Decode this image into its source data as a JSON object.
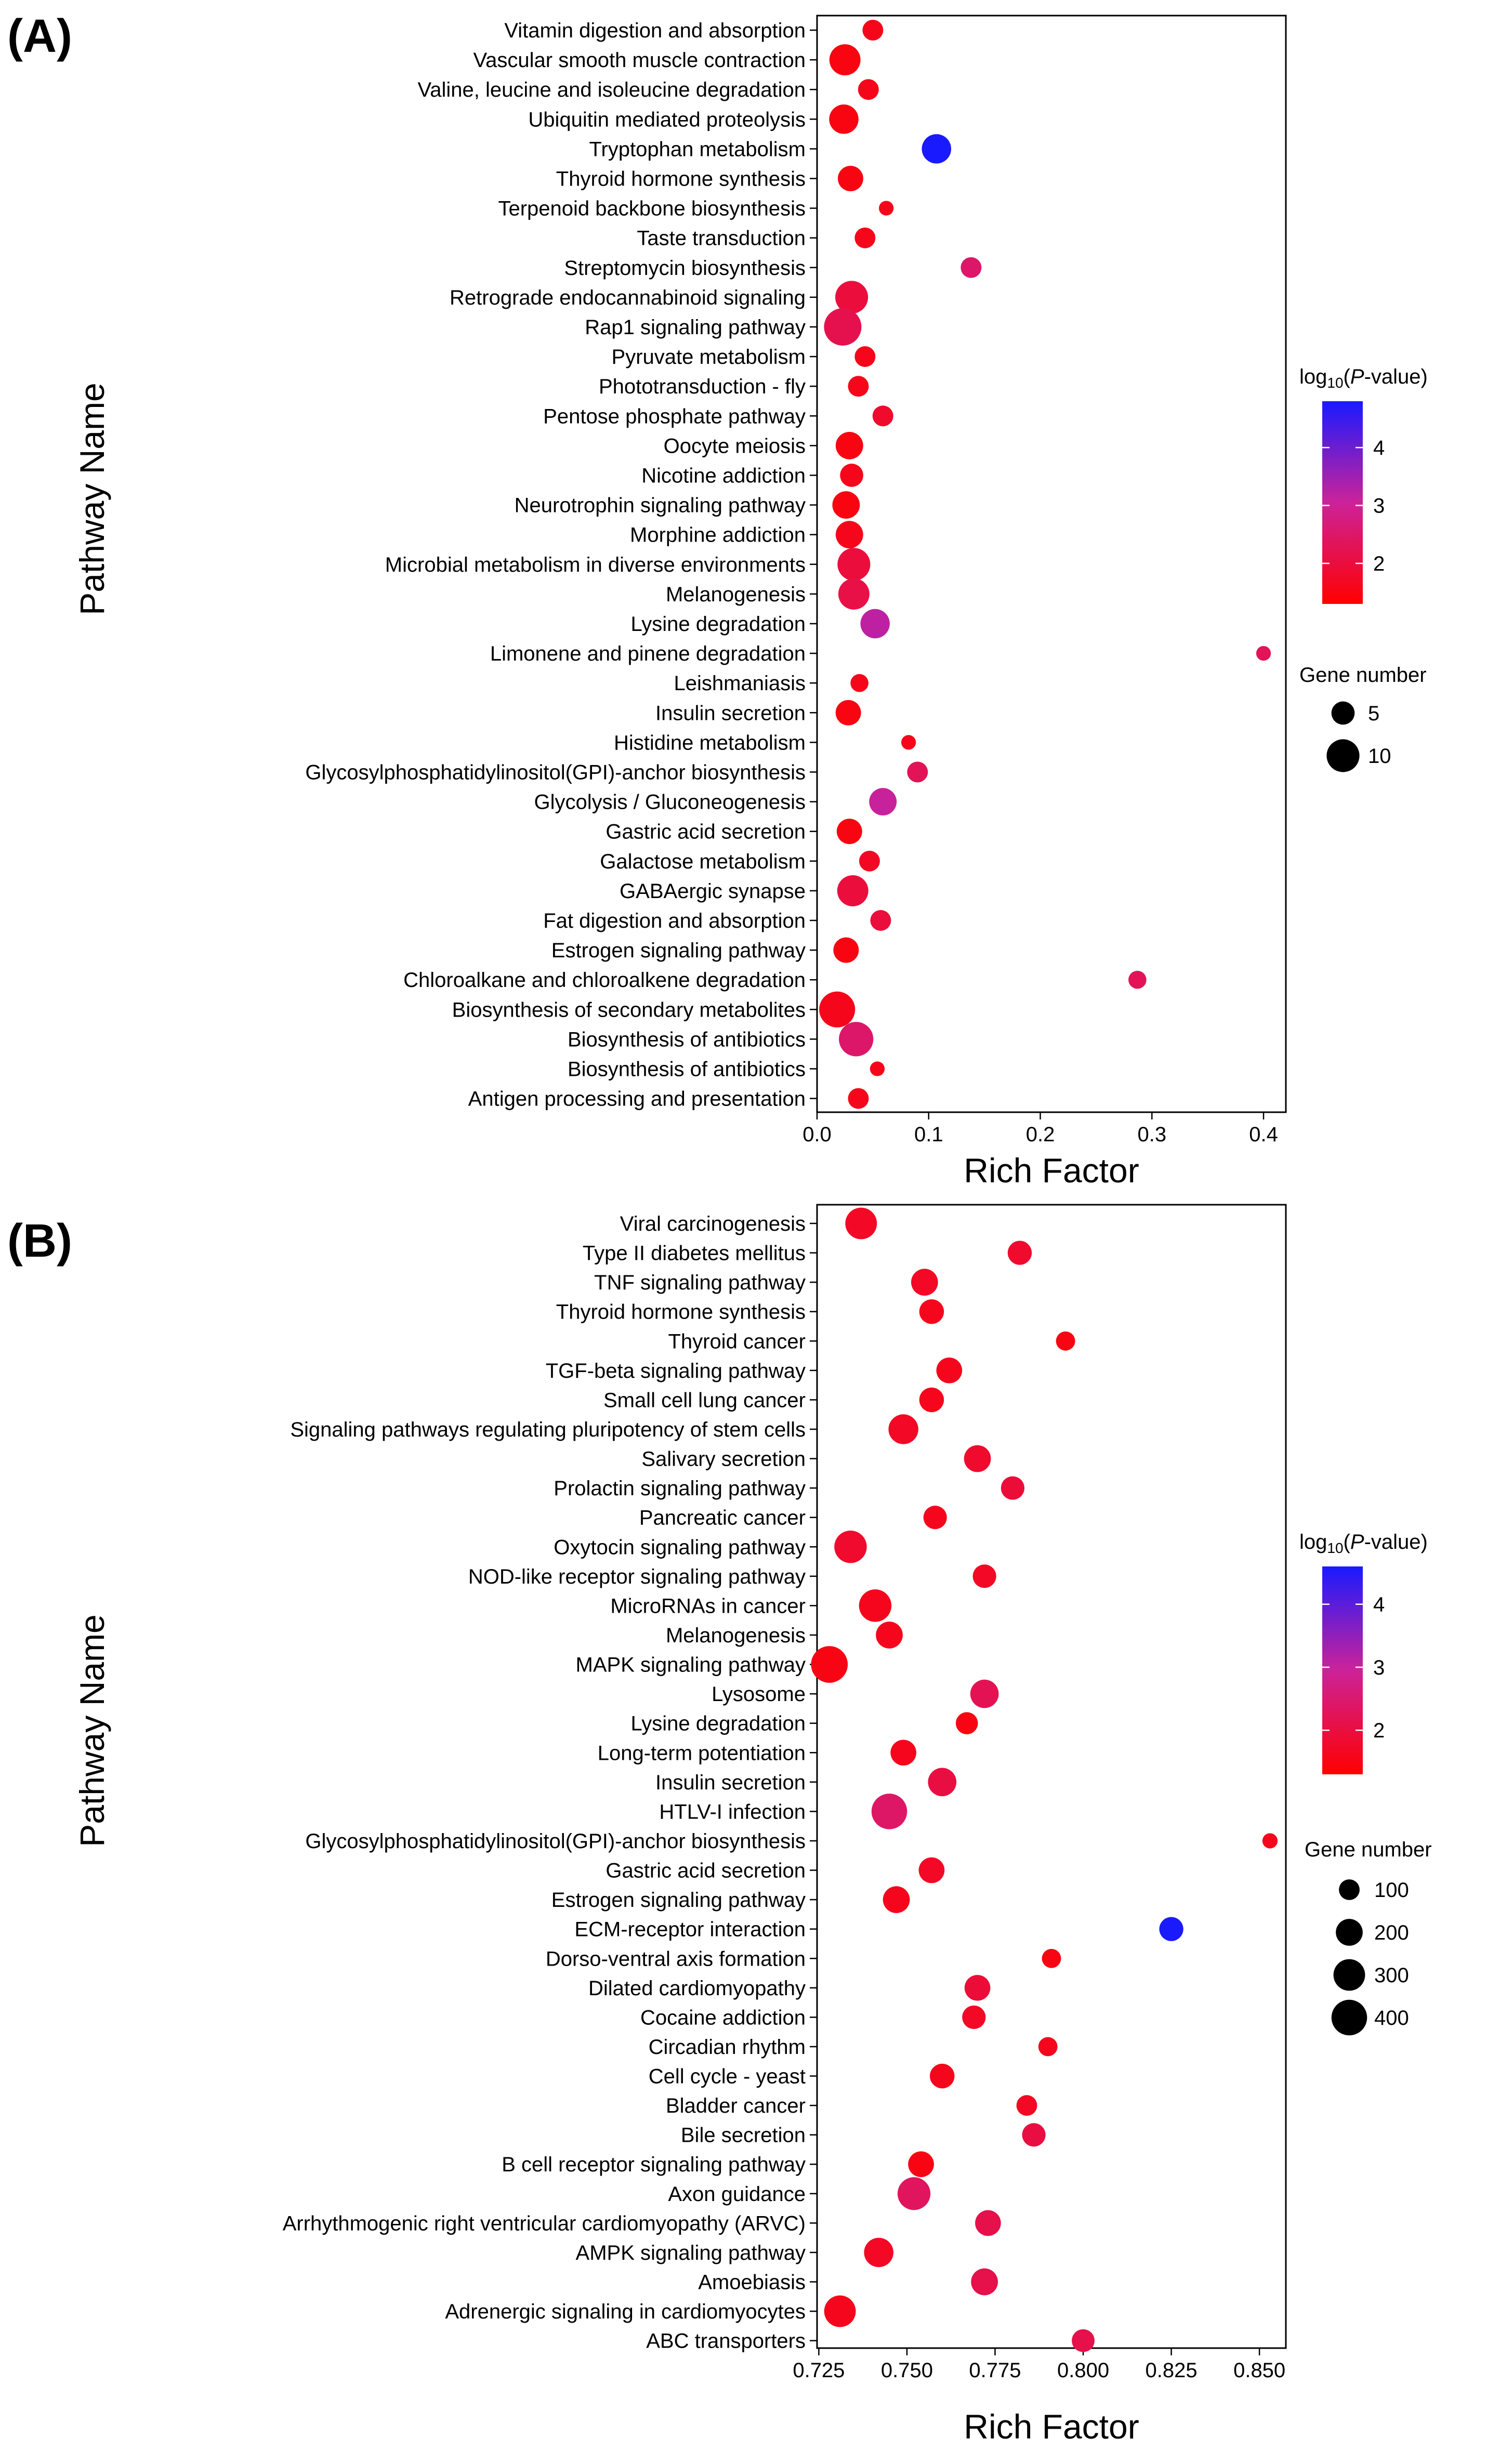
{
  "chart_data": [
    {
      "type": "scatter",
      "panel_label": "(A)",
      "title": "",
      "xlabel": "Rich Factor",
      "ylabel": "Pathway Name",
      "xlim": [
        0.0,
        0.42
      ],
      "xticks": [
        0.0,
        0.1,
        0.2,
        0.3,
        0.4
      ],
      "xtick_labels": [
        "0.0",
        "0.1",
        "0.2",
        "0.3",
        "0.4"
      ],
      "color_legend": {
        "title_prefix": "log",
        "title_sub": "10",
        "title_open": "(",
        "title_italic": "P",
        "title_suffix": "-value)",
        "ticks": [
          2,
          3,
          4
        ],
        "tick_labels": [
          "2",
          "3",
          "4"
        ],
        "min": 1.3,
        "max": 4.8,
        "low_color": "#ff0000",
        "mid_color": "#cc2299",
        "high_color": "#1a1aff"
      },
      "size_legend": {
        "title": "Gene number",
        "values": [
          5,
          10
        ],
        "labels": [
          "5",
          "10"
        ]
      },
      "size_scale": {
        "min": 1,
        "max": 13
      },
      "categories": [
        "Vitamin digestion and absorption",
        "Vascular smooth muscle contraction",
        "Valine, leucine and isoleucine degradation",
        "Ubiquitin mediated proteolysis",
        "Tryptophan metabolism",
        "Thyroid hormone synthesis",
        "Terpenoid backbone biosynthesis",
        "Taste transduction",
        "Streptomycin biosynthesis",
        "Retrograde endocannabinoid signaling",
        "Rap1 signaling pathway",
        "Pyruvate metabolism",
        "Phototransduction - fly",
        "Pentose phosphate pathway",
        "Oocyte meiosis",
        "Nicotine addiction",
        "Neurotrophin signaling pathway",
        "Morphine addiction",
        "Microbial metabolism in diverse environments",
        "Melanogenesis",
        "Lysine degradation",
        "Limonene and pinene degradation",
        "Leishmaniasis",
        "Insulin secretion",
        "Histidine metabolism",
        "Glycosylphosphatidylinositol(GPI)-anchor biosynthesis",
        "Glycolysis / Gluconeogenesis",
        "Gastric acid secretion",
        "Galactose metabolism",
        "GABAergic synapse",
        "Fat digestion and absorption",
        "Estrogen signaling pathway",
        "Chloroalkane and chloroalkene degradation",
        "Biosynthesis of secondary metabolites",
        "Biosynthesis of antibiotics",
        "Biosynthesis of antibiotics",
        "Antigen processing and presentation"
      ],
      "points": [
        {
          "x": 0.05,
          "gene": 4,
          "logp": 1.6
        },
        {
          "x": 0.025,
          "gene": 9,
          "logp": 1.5
        },
        {
          "x": 0.046,
          "gene": 4,
          "logp": 1.6
        },
        {
          "x": 0.024,
          "gene": 8,
          "logp": 1.5
        },
        {
          "x": 0.107,
          "gene": 8,
          "logp": 4.8
        },
        {
          "x": 0.03,
          "gene": 6,
          "logp": 1.5
        },
        {
          "x": 0.062,
          "gene": 2,
          "logp": 1.6
        },
        {
          "x": 0.043,
          "gene": 4,
          "logp": 1.6
        },
        {
          "x": 0.138,
          "gene": 4,
          "logp": 2.5
        },
        {
          "x": 0.031,
          "gene": 10,
          "logp": 2.0
        },
        {
          "x": 0.023,
          "gene": 13,
          "logp": 2.2
        },
        {
          "x": 0.043,
          "gene": 4,
          "logp": 1.6
        },
        {
          "x": 0.037,
          "gene": 4,
          "logp": 1.6
        },
        {
          "x": 0.059,
          "gene": 4,
          "logp": 1.8
        },
        {
          "x": 0.029,
          "gene": 7,
          "logp": 1.5
        },
        {
          "x": 0.031,
          "gene": 5,
          "logp": 1.6
        },
        {
          "x": 0.026,
          "gene": 7,
          "logp": 1.5
        },
        {
          "x": 0.029,
          "gene": 7,
          "logp": 1.6
        },
        {
          "x": 0.033,
          "gene": 10,
          "logp": 2.0
        },
        {
          "x": 0.033,
          "gene": 9,
          "logp": 2.1
        },
        {
          "x": 0.052,
          "gene": 8,
          "logp": 3.2
        },
        {
          "x": 0.4,
          "gene": 2,
          "logp": 2.3
        },
        {
          "x": 0.038,
          "gene": 3,
          "logp": 1.6
        },
        {
          "x": 0.028,
          "gene": 6,
          "logp": 1.5
        },
        {
          "x": 0.082,
          "gene": 2,
          "logp": 1.6
        },
        {
          "x": 0.09,
          "gene": 4,
          "logp": 2.3
        },
        {
          "x": 0.059,
          "gene": 7,
          "logp": 3.1
        },
        {
          "x": 0.029,
          "gene": 6,
          "logp": 1.5
        },
        {
          "x": 0.047,
          "gene": 4,
          "logp": 1.7
        },
        {
          "x": 0.032,
          "gene": 9,
          "logp": 2.0
        },
        {
          "x": 0.057,
          "gene": 4,
          "logp": 2.0
        },
        {
          "x": 0.026,
          "gene": 6,
          "logp": 1.5
        },
        {
          "x": 0.287,
          "gene": 3,
          "logp": 2.3
        },
        {
          "x": 0.018,
          "gene": 12,
          "logp": 1.6
        },
        {
          "x": 0.035,
          "gene": 11,
          "logp": 2.5
        },
        {
          "x": 0.054,
          "gene": 2,
          "logp": 1.6
        },
        {
          "x": 0.037,
          "gene": 4,
          "logp": 1.6
        }
      ]
    },
    {
      "type": "scatter",
      "panel_label": "(B)",
      "title": "",
      "xlabel": "Rich Factor",
      "ylabel": "Pathway Name",
      "xlim": [
        0.7245,
        0.8575
      ],
      "xticks": [
        0.725,
        0.75,
        0.775,
        0.8,
        0.825,
        0.85
      ],
      "xtick_labels": [
        "0.725",
        "0.750",
        "0.775",
        "0.800",
        "0.825",
        "0.850"
      ],
      "color_legend": {
        "title_prefix": "log",
        "title_sub": "10",
        "title_open": "(",
        "title_italic": "P",
        "title_suffix": "-value)",
        "ticks": [
          2,
          3,
          4
        ],
        "tick_labels": [
          "2",
          "3",
          "4"
        ],
        "min": 1.3,
        "max": 4.6,
        "low_color": "#ff0000",
        "mid_color": "#cc2299",
        "high_color": "#1a1aff"
      },
      "size_legend": {
        "title": "Gene number",
        "values": [
          100,
          200,
          300,
          400
        ],
        "labels": [
          "100",
          "200",
          "300",
          "400"
        ]
      },
      "size_scale": {
        "min": 20,
        "max": 450
      },
      "categories": [
        "Viral carcinogenesis",
        "Type II diabetes mellitus",
        "TNF signaling pathway",
        "Thyroid hormone synthesis",
        "Thyroid cancer",
        "TGF-beta signaling pathway",
        "Small cell lung cancer",
        "Signaling pathways regulating pluripotency of stem cells",
        "Salivary secretion",
        "Prolactin signaling pathway",
        "Pancreatic cancer",
        "Oxytocin signaling pathway",
        "NOD-like receptor signaling pathway",
        "MicroRNAs in cancer",
        "Melanogenesis",
        "MAPK signaling pathway",
        "Lysosome",
        "Lysine degradation",
        "Long-term potentiation",
        "Insulin secretion",
        "HTLV-I infection",
        "Glycosylphosphatidylinositol(GPI)-anchor biosynthesis",
        "Gastric acid secretion",
        "Estrogen signaling pathway",
        "ECM-receptor interaction",
        "Dorso-ventral axis formation",
        "Dilated cardiomyopathy",
        "Cocaine addiction",
        "Circadian rhythm",
        "Cell cycle - yeast",
        "Bladder cancer",
        "Bile secretion",
        "B cell receptor signaling pathway",
        "Axon guidance",
        "Arrhythmogenic right ventricular cardiomyopathy (ARVC)",
        "AMPK signaling pathway",
        "Amoebiasis",
        "Adrenergic signaling in cardiomyocytes",
        "ABC transporters"
      ],
      "points": [
        {
          "x": 0.737,
          "gene": 300,
          "logp": 1.7
        },
        {
          "x": 0.782,
          "gene": 150,
          "logp": 1.8
        },
        {
          "x": 0.755,
          "gene": 200,
          "logp": 1.7
        },
        {
          "x": 0.757,
          "gene": 160,
          "logp": 1.6
        },
        {
          "x": 0.795,
          "gene": 80,
          "logp": 1.5
        },
        {
          "x": 0.762,
          "gene": 180,
          "logp": 1.6
        },
        {
          "x": 0.757,
          "gene": 160,
          "logp": 1.6
        },
        {
          "x": 0.749,
          "gene": 260,
          "logp": 1.7
        },
        {
          "x": 0.77,
          "gene": 200,
          "logp": 1.8
        },
        {
          "x": 0.78,
          "gene": 140,
          "logp": 1.9
        },
        {
          "x": 0.758,
          "gene": 140,
          "logp": 1.6
        },
        {
          "x": 0.734,
          "gene": 320,
          "logp": 1.8
        },
        {
          "x": 0.772,
          "gene": 140,
          "logp": 1.7
        },
        {
          "x": 0.741,
          "gene": 320,
          "logp": 1.6
        },
        {
          "x": 0.745,
          "gene": 200,
          "logp": 1.6
        },
        {
          "x": 0.728,
          "gene": 430,
          "logp": 1.5
        },
        {
          "x": 0.772,
          "gene": 230,
          "logp": 2.2
        },
        {
          "x": 0.767,
          "gene": 120,
          "logp": 1.5
        },
        {
          "x": 0.749,
          "gene": 180,
          "logp": 1.6
        },
        {
          "x": 0.76,
          "gene": 230,
          "logp": 2.0
        },
        {
          "x": 0.745,
          "gene": 400,
          "logp": 2.4
        },
        {
          "x": 0.853,
          "gene": 40,
          "logp": 1.6
        },
        {
          "x": 0.757,
          "gene": 180,
          "logp": 1.7
        },
        {
          "x": 0.747,
          "gene": 200,
          "logp": 1.6
        },
        {
          "x": 0.825,
          "gene": 150,
          "logp": 4.6
        },
        {
          "x": 0.791,
          "gene": 80,
          "logp": 1.5
        },
        {
          "x": 0.77,
          "gene": 180,
          "logp": 1.9
        },
        {
          "x": 0.769,
          "gene": 140,
          "logp": 1.7
        },
        {
          "x": 0.79,
          "gene": 80,
          "logp": 1.6
        },
        {
          "x": 0.76,
          "gene": 160,
          "logp": 1.6
        },
        {
          "x": 0.784,
          "gene": 100,
          "logp": 1.7
        },
        {
          "x": 0.786,
          "gene": 140,
          "logp": 2.0
        },
        {
          "x": 0.754,
          "gene": 180,
          "logp": 1.5
        },
        {
          "x": 0.752,
          "gene": 330,
          "logp": 2.3
        },
        {
          "x": 0.773,
          "gene": 180,
          "logp": 2.1
        },
        {
          "x": 0.742,
          "gene": 250,
          "logp": 1.7
        },
        {
          "x": 0.772,
          "gene": 200,
          "logp": 2.1
        },
        {
          "x": 0.731,
          "gene": 300,
          "logp": 1.6
        },
        {
          "x": 0.8,
          "gene": 130,
          "logp": 2.1
        }
      ]
    }
  ]
}
